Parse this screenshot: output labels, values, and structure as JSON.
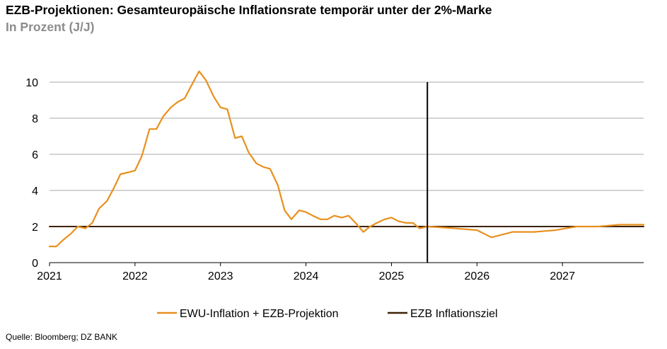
{
  "header": {
    "title": "EZB-Projektionen: Gesamteuropäische Inflationsrate temporär unter der 2%-Marke",
    "subtitle": "In Prozent (J/J)"
  },
  "footer": {
    "source": "Quelle: Bloomberg; DZ BANK"
  },
  "colors": {
    "inflation": "#E8901E",
    "target": "#3D2206",
    "grid": "#AAAAAA",
    "marker": "#000000"
  },
  "chart_data": {
    "type": "line",
    "title": "EZB-Projektionen: Gesamteuropäische Inflationsrate temporär unter der 2%-Marke",
    "subtitle": "In Prozent (J/J)",
    "xlabel": "",
    "ylabel": "",
    "xlim": [
      2021.0,
      2027.95
    ],
    "ylim": [
      0,
      10
    ],
    "x_ticks": [
      2021,
      2022,
      2023,
      2024,
      2025,
      2026,
      2027
    ],
    "y_ticks": [
      0,
      2,
      4,
      6,
      8,
      10
    ],
    "grid": "horizontal",
    "legend_position": "bottom",
    "vertical_marker_x": 2025.42,
    "series": [
      {
        "name": "EWU-Inflation + EZB-Projektion",
        "color": "#E8901E",
        "x": [
          2021.0,
          2021.08,
          2021.17,
          2021.25,
          2021.33,
          2021.42,
          2021.5,
          2021.58,
          2021.67,
          2021.75,
          2021.83,
          2021.92,
          2022.0,
          2022.08,
          2022.17,
          2022.25,
          2022.33,
          2022.42,
          2022.5,
          2022.58,
          2022.67,
          2022.75,
          2022.83,
          2022.92,
          2023.0,
          2023.08,
          2023.17,
          2023.25,
          2023.33,
          2023.42,
          2023.5,
          2023.58,
          2023.67,
          2023.75,
          2023.83,
          2023.92,
          2024.0,
          2024.08,
          2024.17,
          2024.25,
          2024.33,
          2024.42,
          2024.5,
          2024.58,
          2024.67,
          2024.75,
          2024.83,
          2024.92,
          2025.0,
          2025.08,
          2025.17,
          2025.25,
          2025.33,
          2025.42,
          2025.75,
          2026.0,
          2026.17,
          2026.42,
          2026.67,
          2026.92,
          2027.17,
          2027.42,
          2027.67,
          2027.95
        ],
        "y": [
          0.9,
          0.9,
          1.3,
          1.6,
          2.0,
          1.9,
          2.2,
          3.0,
          3.4,
          4.1,
          4.9,
          5.0,
          5.1,
          5.9,
          7.4,
          7.4,
          8.1,
          8.6,
          8.9,
          9.1,
          9.9,
          10.6,
          10.1,
          9.2,
          8.6,
          8.5,
          6.9,
          7.0,
          6.1,
          5.5,
          5.3,
          5.2,
          4.3,
          2.9,
          2.4,
          2.9,
          2.8,
          2.6,
          2.4,
          2.4,
          2.6,
          2.5,
          2.6,
          2.2,
          1.7,
          2.0,
          2.2,
          2.4,
          2.5,
          2.3,
          2.2,
          2.2,
          1.9,
          2.0,
          1.9,
          1.8,
          1.4,
          1.7,
          1.7,
          1.8,
          2.0,
          2.0,
          2.1,
          2.1
        ]
      },
      {
        "name": "EZB Inflationsziel",
        "color": "#3D2206",
        "x": [
          2021.0,
          2027.95
        ],
        "y": [
          2,
          2
        ]
      }
    ]
  }
}
